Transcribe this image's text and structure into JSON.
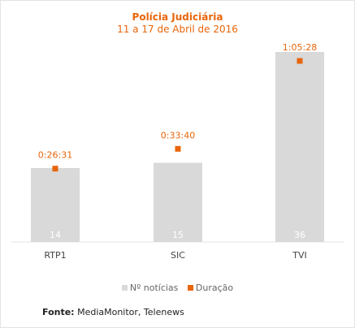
{
  "title": "Polícia Judiciária",
  "subtitle": "11 a 17 de Abril de 2016",
  "colors": {
    "bar": "#d9d9d9",
    "marker": "#e8650a",
    "title": "#e8650a"
  },
  "chart_data": {
    "type": "bar",
    "categories": [
      "RTP1",
      "SIC",
      "TVI"
    ],
    "series": [
      {
        "name": "Nº notícias",
        "values": [
          14,
          15,
          36
        ]
      },
      {
        "name": "Duração",
        "values": [
          "0:26:31",
          "0:33:40",
          "1:05:28"
        ],
        "seconds": [
          1591,
          2020,
          3928
        ]
      }
    ],
    "legend_position": "bottom",
    "grid": false
  },
  "source": {
    "label": "Fonte:",
    "text": "MediaMonitor, Telenews"
  }
}
